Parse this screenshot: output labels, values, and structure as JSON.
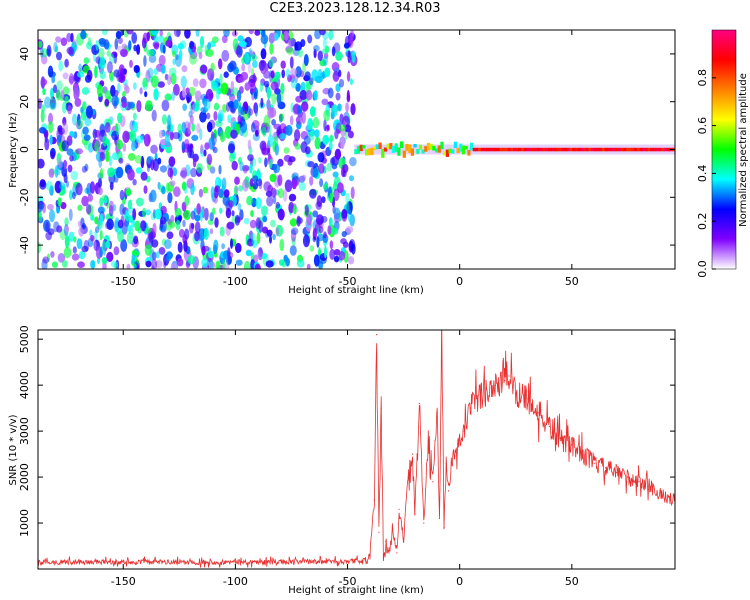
{
  "title": "C2E3.2023.128.12.34.R03",
  "chart_data": [
    {
      "type": "heatmap",
      "xlabel": "Height of straight line (km)",
      "ylabel": "Frequency (Hz)",
      "xlim": [
        -188,
        96
      ],
      "ylim": [
        -50,
        50
      ],
      "xticks": [
        -150,
        -100,
        -50,
        0,
        50
      ],
      "yticks": [
        -40,
        -20,
        0,
        20,
        40
      ],
      "colorbar": {
        "label": "Normalized spectral amplitude",
        "range": [
          0,
          1
        ],
        "ticks": [
          "0.0",
          "0.2",
          "0.4",
          "0.6",
          "0.8"
        ],
        "colors": [
          "#ffffff",
          "#8000ff",
          "#0000ff",
          "#00ffff",
          "#00ff00",
          "#ffff00",
          "#ff8000",
          "#ff0000",
          "#ff0080"
        ]
      },
      "noise_region": {
        "x": [
          -188,
          -47
        ],
        "y": [
          -50,
          50
        ],
        "amplitude": [
          0.05,
          0.5
        ]
      },
      "signal_band": {
        "x": [
          -47,
          96
        ],
        "center_freq": 0,
        "amplitude": [
          0.4,
          1.0
        ]
      }
    },
    {
      "type": "line",
      "xlabel": "Height of straight line (km)",
      "ylabel": "SNR (10 * v/v)",
      "xlim": [
        -188,
        96
      ],
      "ylim": [
        0,
        5200
      ],
      "xticks": [
        -150,
        -100,
        -50,
        0,
        50
      ],
      "yticks": [
        1000,
        2000,
        3000,
        4000,
        5000
      ],
      "color": "#e83030",
      "series": [
        {
          "x": [
            -188,
            -150,
            -100,
            -60,
            -42,
            -40,
            -38,
            -37,
            -36,
            -35,
            -34,
            -33,
            -31,
            -30,
            -28,
            -27,
            -25,
            -23,
            -21,
            -20,
            -18,
            -16,
            -14,
            -12,
            -10,
            -9,
            -8,
            -7,
            -6,
            -5,
            -3,
            -1,
            0,
            2,
            5,
            8,
            12,
            16,
            20,
            22,
            25,
            28,
            30,
            35,
            40,
            45,
            50,
            55,
            60,
            65,
            70,
            75,
            80,
            85,
            90,
            96
          ],
          "y": [
            150,
            150,
            150,
            160,
            180,
            300,
            1500,
            5100,
            800,
            3500,
            250,
            600,
            400,
            900,
            350,
            1300,
            600,
            2000,
            2500,
            1200,
            3600,
            1000,
            2800,
            1900,
            3400,
            1100,
            5200,
            900,
            2300,
            1700,
            2400,
            2600,
            2800,
            3000,
            3500,
            3700,
            3900,
            4000,
            4100,
            4200,
            3800,
            3900,
            3700,
            3400,
            3100,
            2800,
            2700,
            2500,
            2300,
            2200,
            2100,
            2000,
            1900,
            1800,
            1600,
            1500
          ]
        }
      ]
    }
  ]
}
